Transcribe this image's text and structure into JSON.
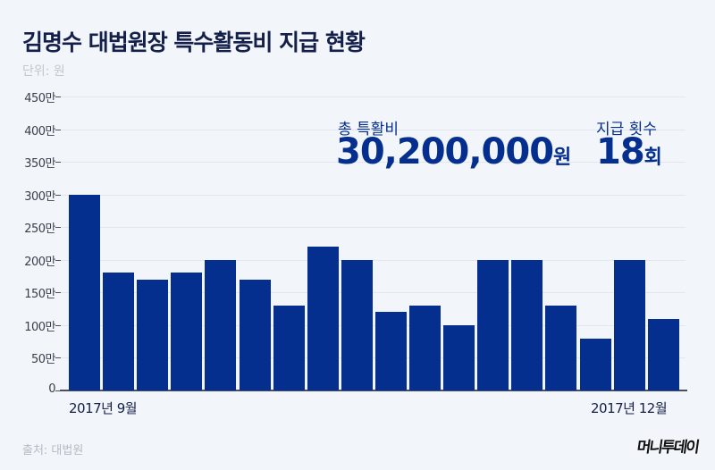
{
  "header": {
    "title": "김명수 대법원장 특수활동비 지급 현황",
    "unit": "단위: 원"
  },
  "stats": {
    "total_label": "총 특활비",
    "total_value": "30,200,000",
    "total_unit": "원",
    "count_label": "지급 횟수",
    "count_value": "18",
    "count_unit": "회"
  },
  "xaxis": {
    "start_label": "2017년 9월",
    "end_label": "2017년 12월"
  },
  "yaxis": {
    "ticks": [
      "450만",
      "400만",
      "350만",
      "300만",
      "250만",
      "200만",
      "150만",
      "100만",
      "50만",
      "0"
    ]
  },
  "footer": {
    "source": "출처: 대법원",
    "logo": "머니투데이"
  },
  "colors": {
    "bar": "#052f8f",
    "title": "#14204a",
    "background": "#f2f5fa"
  },
  "chart_data": {
    "type": "bar",
    "title": "김명수 대법원장 특수활동비 지급 현황",
    "xlabel": "",
    "ylabel": "단위: 원",
    "categories": [
      "1",
      "2",
      "3",
      "4",
      "5",
      "6",
      "7",
      "8",
      "9",
      "10",
      "11",
      "12",
      "13",
      "14",
      "15",
      "16",
      "17",
      "18"
    ],
    "x_range_labels": [
      "2017년 9월",
      "2017년 12월"
    ],
    "values": [
      3000000,
      1800000,
      1700000,
      1800000,
      2000000,
      1700000,
      1300000,
      2200000,
      2000000,
      1200000,
      1300000,
      1000000,
      2000000,
      2000000,
      1300000,
      800000,
      2000000,
      1100000
    ],
    "ylim": [
      0,
      4500000
    ],
    "yticks": [
      0,
      500000,
      1000000,
      1500000,
      2000000,
      2500000,
      3000000,
      3500000,
      4000000,
      4500000
    ],
    "grid": true,
    "annotations": [
      "총 특활비 30,200,000원",
      "지급 횟수 18회"
    ]
  }
}
